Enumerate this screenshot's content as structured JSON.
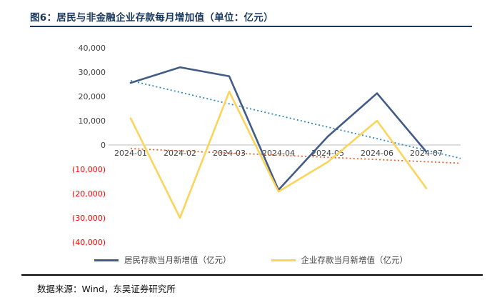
{
  "title": "图6：居民与非金融企业存款每月增加值（单位：亿元）",
  "footer": "数据来源：Wind，东吴证券研究所",
  "colors": {
    "title_navy": "#17375E",
    "negative_tick_red": "#FF0000",
    "tick_gray": "#3f3f3f",
    "zero_axis": "#bfbfbf"
  },
  "chart_data": {
    "type": "line",
    "title": "居民与非金融企业存款每月增加值（单位：亿元）",
    "xlabel": "",
    "ylabel": "",
    "categories": [
      "2024-01",
      "2024-02",
      "2024-03",
      "2024-04",
      "2024-05",
      "2024-06",
      "2024-07"
    ],
    "series": [
      {
        "name": "居民存款当月新增值（亿元）",
        "color": "#425C86",
        "values": [
          25600,
          32000,
          28300,
          -18500,
          3500,
          21300,
          -2800
        ]
      },
      {
        "name": "企业存款当月新增值（亿元）",
        "color": "#FBD45C",
        "values": [
          11000,
          -30000,
          22000,
          -19200,
          -7000,
          10000,
          -17800
        ]
      }
    ],
    "trendlines": [
      {
        "series_index": 0,
        "style": "dotted",
        "color": "#2E86C1",
        "start_value": 26500,
        "end_value": -5500
      },
      {
        "series_index": 1,
        "style": "dotted",
        "color": "#E8632C",
        "start_value": -1500,
        "end_value": -7500
      }
    ],
    "ylim": [
      -40000,
      40000
    ],
    "ytick_step": 10000,
    "ytick_format": "negatives shown in red parentheses, e.g. (10,000)",
    "grid": "zero-axis line only",
    "legend_position": "bottom"
  }
}
